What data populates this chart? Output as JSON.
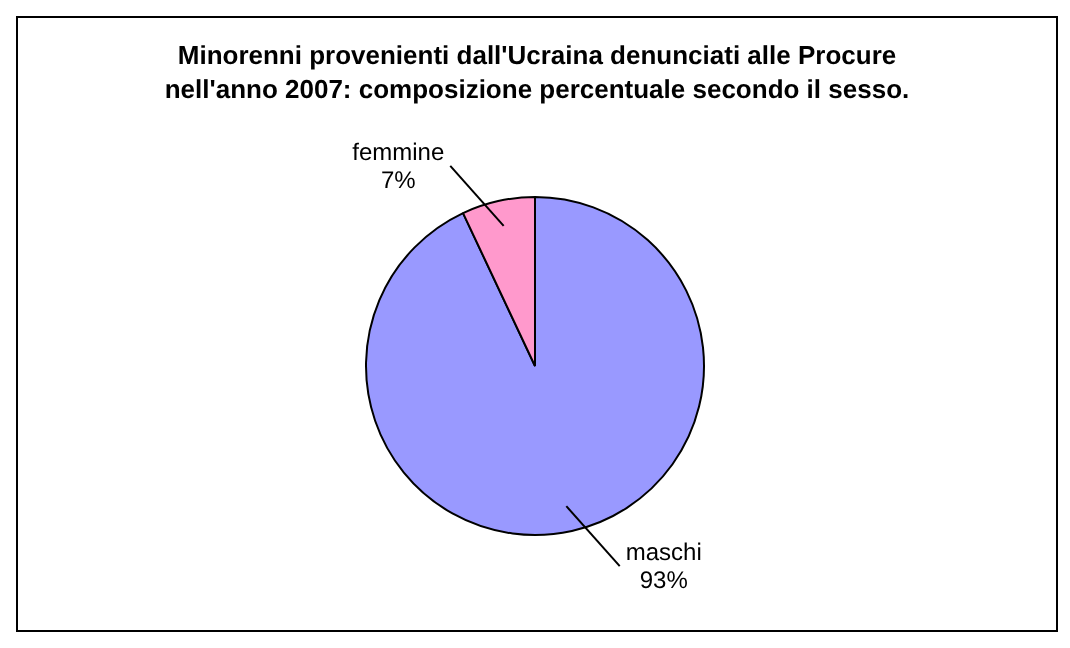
{
  "chart_data": {
    "type": "pie",
    "title": "Minorenni provenienti dall'Ucraina denunciati alle Procure nell'anno 2007: composizione percentuale secondo il sesso.",
    "categories": [
      "maschi",
      "femmine"
    ],
    "values": [
      93,
      7
    ],
    "value_labels": [
      "93%",
      "7%"
    ],
    "colors": [
      "#9999ff",
      "#ff99cc"
    ],
    "legend": false
  }
}
